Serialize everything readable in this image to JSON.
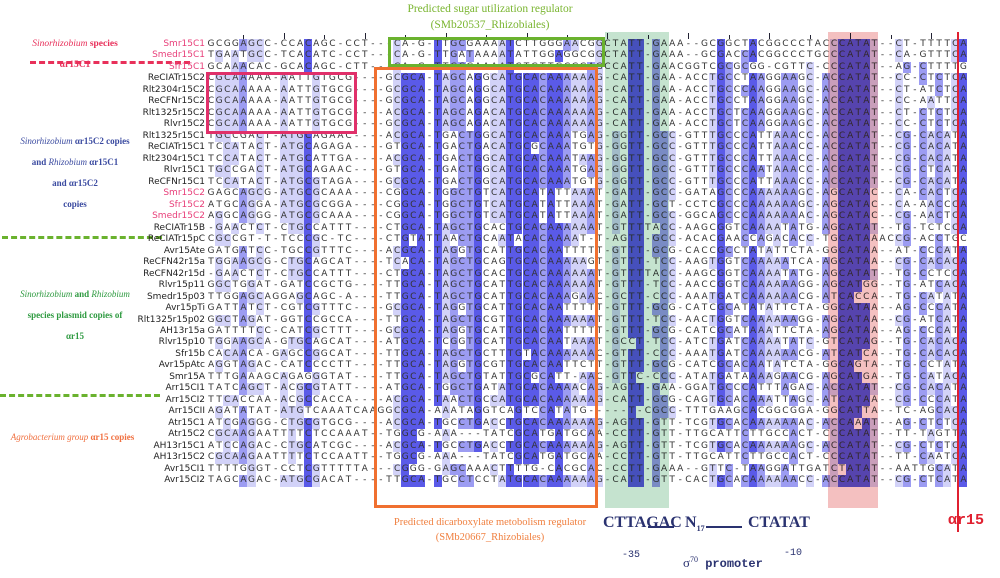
{
  "annotations": {
    "top_line1": "Predicted sugar utilization regulator",
    "top_line2": "(SMb20537_Rhizobiales)",
    "bottom_line1": "Predicted dicarboxylate metobolism regulator",
    "bottom_line2": "(SMb20667_Rhizobiales)"
  },
  "groups": [
    {
      "italic": "Sinorhizobium",
      "rest": " species",
      "line2": "αr15C1",
      "color": "#e8305a"
    },
    {
      "l1i": "Sinorhizobium",
      "l1": " αr15C2 copies",
      "l2a": "and ",
      "l2i": "Rhizobium",
      "l2b": " αr15C1",
      "l3": "and αr15C2",
      "l4": "copies",
      "color": "#3a4aa0"
    },
    {
      "l1i": "Sinorhizobium",
      "l1a": " and ",
      "l1i2": "Rhizobium",
      "l2": "species plasmid copies of",
      "l3": "αr15",
      "color": "#2e9a40"
    },
    {
      "italic": "Agrobacterium group",
      "rest": " αr15 copies",
      "color": "#f07040"
    }
  ],
  "promoter": {
    "minus35_seq": "CTTAGAC",
    "spacer": "N",
    "spacer_sub": "17",
    "minus10_seq": "CTATAT",
    "minus35_label": "-35",
    "minus10_label": "-10",
    "sigma": "σ",
    "sigma_sup": "70",
    "promoter_label": "promoter"
  },
  "end_label": "αr15",
  "colors": {
    "dark": "#5a5ae8",
    "mid": "#9c9cf2",
    "light": "#d2d2f8",
    "green_box": "#6ab22e",
    "pink_box": "#e0306a",
    "orange_box": "#f07030",
    "red_line": "#e02030"
  },
  "alignment": {
    "rows": [
      {
        "name": "Smr15C1",
        "pink": true,
        "seq": "GCGGAGCC-CCACAGC-CCT---CA-G-TTGCGAAAATCTTGGGAACGGCTATT-GAAA--GCGGCTACGGCCCTACCCATAT--CT-TTTTCA"
      },
      {
        "name": "Smedr15C1",
        "pink": true,
        "seq": "TGAATGCC-TCACATC-CCT---CA-G-TTGATAAAATATTGGAGGCGGCTATT-GAAA--GCGACCACGGCCCTGCCCATAT--CA-GTTTCA"
      },
      {
        "name": "Sfr15C1",
        "pink": true,
        "seq": "GCAAACAC-GCACAGC-CTT---CA-G-TTGCGAAAATCTGTTGCGGAGCCATT-GAACGGTCGCGCGG-CGTTC-CCCATAT--AG-CTTTTG"
      },
      {
        "name": "ReCIATr15C2",
        "seq": "CGCAAAAA-AATTGTGCG----GCGCA-TAGCAGGCATGCACAAAAAAG-CATT-GAA-ACCTGCCTAAGGAAGC-ACCATAT--CC-CTCTCA"
      },
      {
        "name": "Rlt2304r15C2",
        "seq": "CGCAAAAA-AATTGTGCG----GCGCA-TAGCAGGCATGCACAAAAAAG-CATT-GAA-ACCTGCCCAAGGAAGC-ACCATAT--CT-ATCTCA"
      },
      {
        "name": "ReCFNr15C2",
        "seq": "CGCAAAAA-AATTGTGCG----GCGCA-TAGCAGGCATGCACAAAAAAG-CATT-GAA-ACCTGCCTAAGGAAGC-ACCATAT--CC-AATTCA"
      },
      {
        "name": "Rlt1325r15C2",
        "seq": "CGCAAAAA-AATTGTGCG----ACGCA-TAGCAGACATGCACAAAAAAG-CATT-GAA-ACCTGCTCAAGGAAGC-ACCATAT--CT-CTCTCA"
      },
      {
        "name": "Rlvr15C2",
        "seq": "CGCAAAAA-AATTGTGCG----GCGCA-TAGCAGACATGCACAAAAAAG-CATT-GAA-ACCTGCTCAAGGAAGC-ACCATAT--CC-CTCTCA"
      },
      {
        "name": "Rlt1325r15C1",
        "seq": "TGCCGACT-ATGCAGAAC----ACGCA-TGACTGGCATGCACAAATGAG-GGTT-GCC-GTTTGCCCATTAAACC-ACCATAT--CG-CACATA"
      },
      {
        "name": "ReCIATr15C1",
        "seq": "TCCATACT-ATGCAGAGA----GTGCA-TGACTGACATGCGCAAATGTG-GGTT-GCC-GTTTGCCCATTAAACC-ACCATAT--CG-CACATA"
      },
      {
        "name": "Rlt2304r15C1",
        "seq": "TCCATACT-ATGCATTGA----ACGCA-TGACTGGCATGCACAAATAAG-GGTT-GCC-GTTTGCCCATTAAACC-ACCATAT--CG-CACATA"
      },
      {
        "name": "Rlvr15C1",
        "seq": "TGCCGACT-ATGCAGAAC----GTGCA-TGACTGGCATGCACAAATGAG-GGTT-GCC-GTTTGCCCAATAAACC-ACCATAT--CG-CTCATA"
      },
      {
        "name": "ReCFNr15C1",
        "seq": "TCCATACT-ATGCGTAGA----GCGCA-TGACTGGCATGCACAAATGTG-GGTT-GCC-GTTTGCCCATTAAACC-ACCATAT--CG-CACATA"
      },
      {
        "name": "Smr15C2",
        "pink": true,
        "seq": "GAGCAGCG-ATGCGCAAA----CGGCA-TGGCTGTCATGCATATTAAAT-GATT-GCC-GATAGCCCAAAAAAGC-AGCATAC--CA-CACTCA"
      },
      {
        "name": "Sfr15C2",
        "pink": true,
        "seq": "ATGCAGGA-ATGCGCGGA----CGGCA-TGGCTGTCATGCATATTAAAT-GATT-GCT-CCTCGCCCAAAAAAGC-AGCATAC--CA-AACCCA"
      },
      {
        "name": "Smedr15C2",
        "pink": true,
        "seq": "AGGCAGGG-ATGCGCAAA----CGGCA-TGGCTGTCATGCATATTAAAT-GATT-GCC-GGCAGCCCAAAAAAAC-AGCATAC--CG-AACTCA"
      },
      {
        "name": "ReCIATr15B",
        "seq": "-GAACTCT-CTGCCATTT----CTGCA-TAGCTGCACTGCACAAAAAAT-GTTTTACC-AAGCGGTCAAAATATG-AGCATAT--TG-TCTCCA"
      },
      {
        "name": "ReCIATr15pC",
        "seq": "CGCCGT-T-TCCCGC-TC----CTGTATTAACTGCAATACACAAAAT-T-AGTT-GCC-ACACGAACCAGACACC-TGCATAAACCG-ACCTGC"
      },
      {
        "name": "Avr15Ate",
        "seq": "GATGATCC-TGCCGTTTC----ACGCA-TAGGTGCATTGCACAATTTTT-GTTT-GCG-CACCGCCTATATTCTA-GGCATAA--AT-CCCATA"
      },
      {
        "name": "ReCFN42r15a",
        "seq": "TGGAAGCG-CTGCAGCAT----TCACA-TAGCTGCAGTGCACAAAAAGT-GTTT-TCC-AAGTGGTCAAAAATCA-AGCATAA--CG-CACACA"
      },
      {
        "name": "ReCFN42r15d",
        "seq": "-GAACTCT-CTGCCATTT----CTGCA-TAGCTGCACTGCACAAAAAAT-GTTTTACC-AAGCGGTCAAAATATG-AGCATAT--TG-CCTCCA"
      },
      {
        "name": "Rlvr15p11",
        "seq": "GGCTGGAT-GATCCGCTG----TTGCA-TAGCTGCATTGCACAAAAAAT-GTTT-TCC-AACCGGTCAAAAAAGG-AGCATGG--TG-ATCACA"
      },
      {
        "name": "Smedr15p03",
        "seq": "TTGGAGCAGGAGCAGC-A----TTGCA-TAGCTGCATTGCACAAAGAAC-GCTT-CCC-AAATGATCAAAAAACG-ATCACCA--TG-CATATA"
      },
      {
        "name": "Avr15pTi",
        "seq": "GATTATCT-CGTCGTTTC----GCGCA-TAGGTGCATTGCACAATTTTT-GTTT-GCG-CATCGCATATATTCTA-GGCATAA--AG-CCCATA"
      },
      {
        "name": "Rlt1325r15p02",
        "seq": "GGCTAGAT-GGTCCGCCA----TTGCA-TAGCTGCGTTGCACAAAAAAT-GTTT-TCC-AACTGGTCAAAAAAGG-AGCATAA--CG-ATCATA"
      },
      {
        "name": "AH13r15a",
        "seq": "GATTTTCC-CATCGCTTT----GCGCA-TAGGTGCATTGCACAATTTTT-GTTT-GCG-CATCGCATAAATTCTA-AGCATAA--AG-CCCATA"
      },
      {
        "name": "Rlvr15p10",
        "seq": "TGGAAGCA-GTGCAGCAT----ATGCA-TCGGTGCATTGCACAATAAAT-GCCT-TCC-ATCTGATCAAAATATC-GTCATAG--TG-CACACA"
      },
      {
        "name": "Sfr15b",
        "seq": "CACAACA-GAGCCGGCAT----TTGCA-TAGCTGCTTTGTACAAAAAAC-GTTT-CCC-AAATGATCAAAAAACG-ATCATCA--TG-CACACA"
      },
      {
        "name": "Avr15pAtc",
        "seq": "AGGTAGAC-CATCCCCTT----TTGCA-TAGGTGCGTTGCACAATTCTT-GTTT-GCG-CATCGCACAATATCTA-GGCAGTA--TG-CCTATA"
      },
      {
        "name": "Smr15A",
        "seq": "TTTGAAAGCAGAGGGTAT----TTGCA-TAGCTGTATTGCGCATT-AAC-GTTC-CCC-ATATGATAAAAGAACG-AGCATGA--TG-CATACA"
      },
      {
        "name": "Arr15CI1",
        "seq": "TATCAGCT-ACGCGTATT----ATGCA-TGGCTGATATGCACAAAACAG-AGTT-GAA-GGATGCCCATTTAGAC-ACCATAT--CG-CACATA"
      },
      {
        "name": "Arr15CI2",
        "seq": "TTCACCAA-ACGCCACCA----ACGCA-TAACTGCCATGCACAAAAAAG-CATT-GCG-CAGTGCACAAATTAGC-ATCATAA--CG-CCCATA"
      },
      {
        "name": "Arr15CII",
        "seq": "AGATATAT-ATGTCAAATCAAGGCGCA-AAATAGGTCAGTCCATATG-----T-CGCC-TTTGAAGCACGGCGGA-GGCATTA--TC-AGCACA"
      },
      {
        "name": "Atr15C1",
        "seq": "ATCGAGGG-CTGCGTGCG----ACGCA-TGCCTGACCTGCACAAAAAAG-AGTT-GTT-TCGTGCACAAAAAAAC-ACCAAAT--AG-CTCTCA"
      },
      {
        "name": "Atr15C2",
        "seq": "CGCAAGAATTTTCTCCAAAT--TGGCG-AAA---TATCGCATGATGCAA-CCTT-GTT-TTGCATTCTTGCCACT-CCCATAT--TT-TAGTTA"
      },
      {
        "name": "AH13r15C1",
        "seq": "ATCCAGAC-CTGCATCGC----ACGCA-TGCCTGACCTGCACAAAAAAG-AGTT-GTT-TCGTGCACAAAAAAGC-ACCATAT--CG-CTCTCA"
      },
      {
        "name": "AH13r15C2",
        "seq": "CGCAAGAATTTTCTCCAATT--TGGCG-AAA---TATCGCATGATGCAA-CCTT-GTT-TTGCATTCTTGCCACT-CCCATAT--TT-CAATCA"
      },
      {
        "name": "Avr15CI1",
        "seq": "TTTTGGGT-CCTCGTTTTTA---CGGG-GAGCAAACTTTTG-CACGCAC-CCTT-GAAA--GTTC-TAAGGATTGATCTATAT--AATTGCATA"
      },
      {
        "name": "Avr15CI2",
        "seq": "TAGCAGAC-ATGCGACAT----TTGCA-TGCCTCCTATGCACAAAAAAG-CATT-GTT-CACTGCACAAAAAACC-ACCATAT--CG-CTCATA"
      }
    ]
  }
}
